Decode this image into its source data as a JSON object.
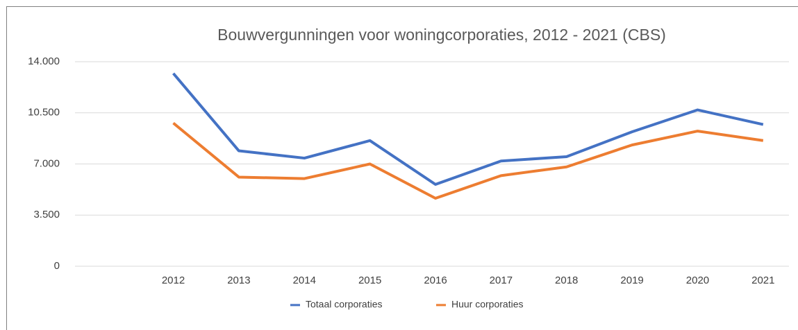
{
  "chart_data": {
    "type": "line",
    "title": "Bouwvergunningen voor woningcorporaties, 2012 - 2021 (CBS)",
    "categories": [
      null,
      "2012",
      "2013",
      "2014",
      "2015",
      "2016",
      "2017",
      "2018",
      "2019",
      "2020",
      "2021"
    ],
    "series": [
      {
        "name": "Totaal corporaties",
        "color": "#4472c4",
        "values": [
          null,
          13200,
          7900,
          7400,
          8600,
          5600,
          7200,
          7500,
          9200,
          10700,
          9700
        ]
      },
      {
        "name": "Huur corporaties",
        "color": "#ed7d31",
        "values": [
          null,
          9800,
          6100,
          6000,
          7000,
          4650,
          6200,
          6800,
          8300,
          9250,
          8600
        ]
      }
    ],
    "ylim": [
      0,
      14000
    ],
    "yticks": [
      0,
      {
        "value": 3500,
        "label": "3.500"
      },
      {
        "value": 7000,
        "label": "7.000"
      },
      {
        "value": 10500,
        "label": "10.500"
      },
      {
        "value": 14000,
        "label": "14.000"
      }
    ],
    "grid": true,
    "legend": "bottom"
  }
}
